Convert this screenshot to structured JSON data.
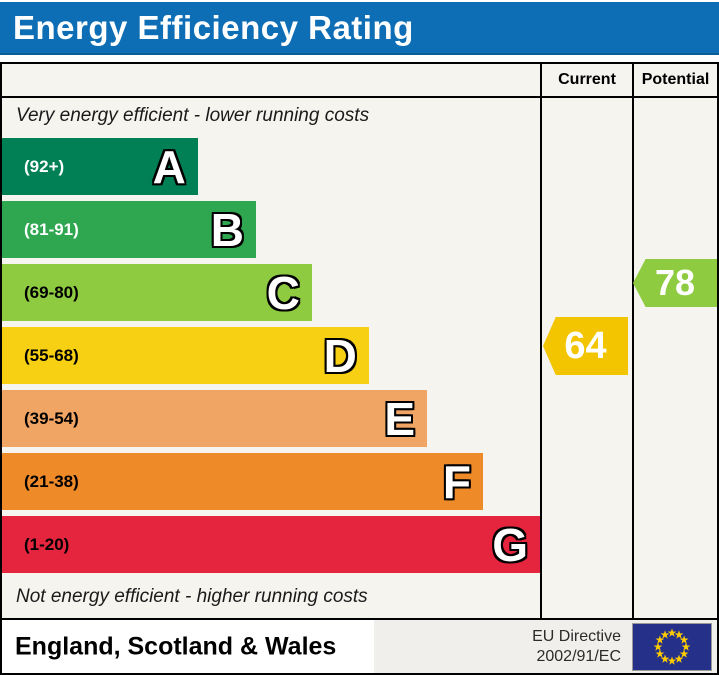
{
  "title": {
    "text": "Energy Efficiency Rating"
  },
  "columns": {
    "current": "Current",
    "potential": "Potential"
  },
  "notes": {
    "top": "Very energy efficient - lower running costs",
    "bottom": "Not energy efficient - higher running costs"
  },
  "footer": {
    "region": "England, Scotland & Wales",
    "directive_line1": "EU Directive",
    "directive_line2": "2002/91/EC",
    "flag": "eu-flag"
  },
  "colors": {
    "title_bg": "#0d6eb5",
    "title_text": "#ffffff",
    "border": "#000000",
    "chart_bg": "#f5f4ef",
    "eu_flag_bg": "#253189",
    "eu_flag_stars": "#ffcc00"
  },
  "chart_data": {
    "type": "bar",
    "title": "Energy Efficiency Rating",
    "categories": [
      "A",
      "B",
      "C",
      "D",
      "E",
      "F",
      "G"
    ],
    "bands": [
      {
        "letter": "A",
        "range_label": "(92+)",
        "min": 92,
        "max": 100,
        "color": "#008054",
        "width_pct": 36.4,
        "label_text_color": "#ffffff"
      },
      {
        "letter": "B",
        "range_label": "(81-91)",
        "min": 81,
        "max": 91,
        "color": "#2ea750",
        "width_pct": 47.2,
        "label_text_color": "#ffffff"
      },
      {
        "letter": "C",
        "range_label": "(69-80)",
        "min": 69,
        "max": 80,
        "color": "#8ecb41",
        "width_pct": 57.6,
        "label_text_color": "#000000"
      },
      {
        "letter": "D",
        "range_label": "(55-68)",
        "min": 55,
        "max": 68,
        "color": "#f7cf13",
        "width_pct": 68.2,
        "label_text_color": "#000000"
      },
      {
        "letter": "E",
        "range_label": "(39-54)",
        "min": 39,
        "max": 54,
        "color": "#f1a564",
        "width_pct": 79.0,
        "label_text_color": "#000000"
      },
      {
        "letter": "F",
        "range_label": "(21-38)",
        "min": 21,
        "max": 38,
        "color": "#ef8a29",
        "width_pct": 89.4,
        "label_text_color": "#000000"
      },
      {
        "letter": "G",
        "range_label": "(1-20)",
        "min": 1,
        "max": 20,
        "color": "#e5243d",
        "width_pct": 100,
        "label_text_color": "#000000"
      }
    ],
    "current": {
      "value": 64,
      "band": "D",
      "color": "#f2c500"
    },
    "potential": {
      "value": 78,
      "band": "C",
      "color": "#8ecb41"
    }
  }
}
